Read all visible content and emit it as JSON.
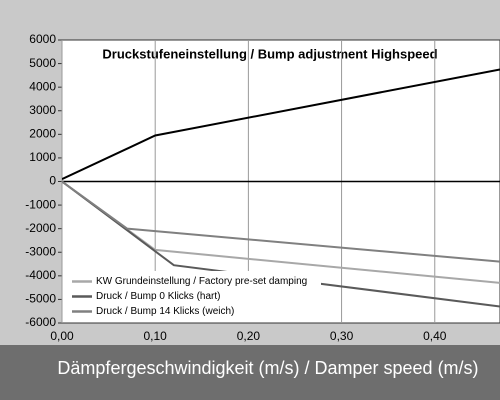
{
  "chart_data": {
    "type": "line",
    "title": "Druckstufeneinstellung / Bump adjustment Highspeed",
    "x_label": "Dämpfergeschwindigkeit (m/s) / Damper speed (m/s)",
    "xlim": [
      0,
      0.47
    ],
    "xticks": [
      {
        "value": 0,
        "label": "0,00"
      },
      {
        "value": 0.1,
        "label": "0,10"
      },
      {
        "value": 0.2,
        "label": "0,20"
      },
      {
        "value": 0.3,
        "label": "0,30"
      },
      {
        "value": 0.4,
        "label": "0,40"
      }
    ],
    "ylim": [
      -6000,
      6000
    ],
    "yticks": [
      -6000,
      -5000,
      -4000,
      -3000,
      -2000,
      -1000,
      0,
      1000,
      2000,
      3000,
      4000,
      5000,
      6000
    ],
    "grid": "x",
    "legend": "lower left",
    "series": [
      {
        "name": "KW Grundeinstellung / Factory pre-set damping",
        "color": "#a8a8a8",
        "x": [
          0,
          0.1,
          0.47
        ],
        "values": [
          0,
          -2900,
          -4300
        ]
      },
      {
        "name": "Druck / Bump 0 Klicks (hart)",
        "color": "#5a5a5a",
        "x": [
          0,
          0.12,
          0.47
        ],
        "values": [
          0,
          -3550,
          -5300
        ]
      },
      {
        "name": "Druck / Bump 14 Klicks (weich)",
        "color": "#808080",
        "x": [
          0,
          0.07,
          0.47
        ],
        "values": [
          0,
          -2000,
          -3400
        ]
      },
      {
        "color": "#000000",
        "x": [
          0,
          0.1,
          0.47
        ],
        "values": [
          100,
          1950,
          4750
        ]
      }
    ]
  }
}
